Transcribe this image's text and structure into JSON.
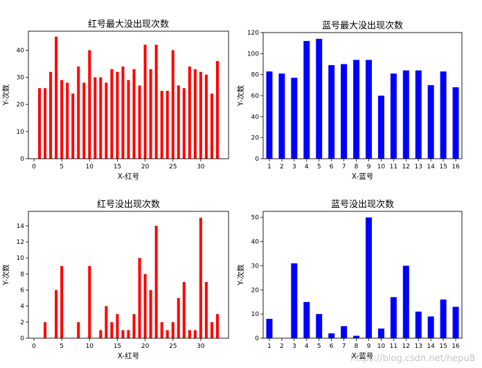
{
  "chart_data": [
    {
      "type": "bar",
      "title": "红号最大没出现次数",
      "xlabel": "X-红号",
      "ylabel": "Y-次数",
      "color": "#ff0000",
      "x_mode": "numeric",
      "xlim": [
        -1,
        35
      ],
      "x_ticks": [
        0,
        5,
        10,
        15,
        20,
        25,
        30
      ],
      "ylim": [
        0,
        47
      ],
      "y_ticks": [
        0,
        10,
        20,
        30,
        40
      ],
      "x": [
        1,
        2,
        3,
        4,
        5,
        6,
        7,
        8,
        9,
        10,
        11,
        12,
        13,
        14,
        15,
        16,
        17,
        18,
        19,
        20,
        21,
        22,
        23,
        24,
        25,
        26,
        27,
        28,
        29,
        30,
        31,
        32,
        33
      ],
      "values": [
        26,
        26,
        32,
        45,
        29,
        28,
        24,
        34,
        28,
        40,
        30,
        30,
        28,
        33,
        32,
        34,
        29,
        33,
        27,
        42,
        33,
        42,
        25,
        25,
        40,
        27,
        26,
        34,
        33,
        32,
        31,
        24,
        36
      ]
    },
    {
      "type": "bar",
      "title": "蓝号最大没出现次数",
      "xlabel": "X-蓝号",
      "ylabel": "Y-次数",
      "color": "#0000ff",
      "x_mode": "category",
      "categories": [
        "1",
        "2",
        "3",
        "4",
        "5",
        "6",
        "7",
        "8",
        "9",
        "10",
        "11",
        "12",
        "13",
        "14",
        "15",
        "16"
      ],
      "ylim": [
        0,
        120
      ],
      "y_ticks": [
        0,
        20,
        40,
        60,
        80,
        100,
        120
      ],
      "values": [
        83,
        81,
        77,
        112,
        114,
        89,
        90,
        94,
        94,
        60,
        81,
        84,
        84,
        70,
        83,
        68
      ]
    },
    {
      "type": "bar",
      "title": "红号没出现次数",
      "xlabel": "X-红号",
      "ylabel": "Y-次数",
      "color": "#ff0000",
      "x_mode": "numeric",
      "xlim": [
        -1,
        35
      ],
      "x_ticks": [
        0,
        5,
        10,
        15,
        20,
        25,
        30
      ],
      "ylim": [
        0,
        15.8
      ],
      "y_ticks": [
        0,
        2,
        4,
        6,
        8,
        10,
        12,
        14
      ],
      "x": [
        1,
        2,
        3,
        4,
        5,
        6,
        7,
        8,
        9,
        10,
        11,
        12,
        13,
        14,
        15,
        16,
        17,
        18,
        19,
        20,
        21,
        22,
        23,
        24,
        25,
        26,
        27,
        28,
        29,
        30,
        31,
        32,
        33
      ],
      "values": [
        0,
        2,
        0,
        6,
        9,
        0,
        0,
        2,
        0,
        9,
        0,
        1,
        4,
        2,
        3,
        1,
        1,
        3,
        10,
        8,
        6,
        14,
        2,
        1,
        2,
        5,
        7,
        1,
        1,
        15,
        7,
        2,
        3
      ]
    },
    {
      "type": "bar",
      "title": "蓝号没出现次数",
      "xlabel": "X-蓝号",
      "ylabel": "Y-次数",
      "color": "#0000ff",
      "x_mode": "category",
      "categories": [
        "1",
        "2",
        "3",
        "4",
        "5",
        "6",
        "7",
        "8",
        "9",
        "10",
        "11",
        "12",
        "13",
        "14",
        "15",
        "16"
      ],
      "ylim": [
        0,
        52.5
      ],
      "y_ticks": [
        0,
        10,
        20,
        30,
        40,
        50
      ],
      "values": [
        8,
        0,
        31,
        15,
        10,
        2,
        5,
        1,
        50,
        4,
        17,
        30,
        11,
        9,
        16,
        13
      ]
    }
  ],
  "watermark": "https://blog.csdn.net/hepu8"
}
